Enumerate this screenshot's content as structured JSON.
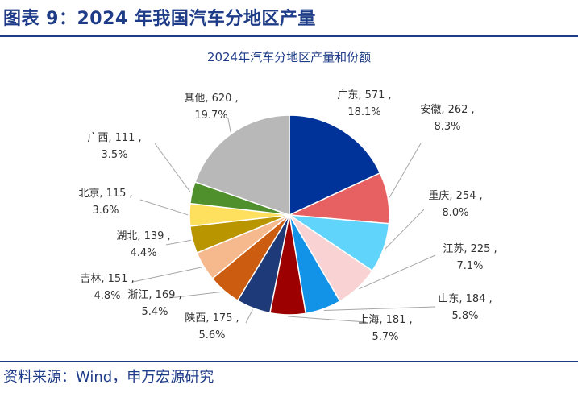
{
  "figure": {
    "title": "图表 9：2024 年我国汽车分地区产量",
    "source": "资料来源：Wind，申万宏源研究"
  },
  "chart_data": {
    "type": "pie",
    "title": "2024年汽车分地区产量和份额",
    "slices": [
      {
        "name": "广东",
        "value": 571,
        "value_text": "571",
        "percent": "18.1%",
        "color": "#00339a"
      },
      {
        "name": "安徽",
        "value": 262,
        "value_text": "262",
        "percent": "8.3%",
        "color": "#e86162"
      },
      {
        "name": "重庆",
        "value": 254,
        "value_text": "254",
        "percent": "8.0%",
        "color": "#61d4fb"
      },
      {
        "name": "江苏",
        "value": 225,
        "value_text": "225",
        "percent": "7.1%",
        "color": "#f9d3d3"
      },
      {
        "name": "山东",
        "value": 184,
        "value_text": "184",
        "percent": "5.8%",
        "color": "#1393e7"
      },
      {
        "name": "上海",
        "value": 181,
        "value_text": "181",
        "percent": "5.7%",
        "color": "#9c0000"
      },
      {
        "name": "陕西",
        "value": 175,
        "value_text": "175",
        "percent": "5.6%",
        "color": "#1e3a78"
      },
      {
        "name": "浙江",
        "value": 169,
        "value_text": "169",
        "percent": "5.4%",
        "color": "#cc5c10"
      },
      {
        "name": "吉林",
        "value": 151,
        "value_text": "151",
        "percent": "4.8%",
        "color": "#f6b98e"
      },
      {
        "name": "湖北",
        "value": 139,
        "value_text": "139",
        "percent": "4.4%",
        "color": "#b99600"
      },
      {
        "name": "北京",
        "value": 115,
        "value_text": "115",
        "percent": "3.6%",
        "color": "#fedf5e"
      },
      {
        "name": "广西",
        "value": 111,
        "value_text": "111",
        "percent": "3.5%",
        "color": "#4f902d"
      },
      {
        "name": "其他",
        "value": 620,
        "value_text": "620",
        "percent": "19.7%",
        "color": "#b8b8b8"
      }
    ],
    "start_angle": "12 o'clock",
    "direction": "clockwise",
    "legend": "none",
    "data_labels": "name, value, percent"
  }
}
